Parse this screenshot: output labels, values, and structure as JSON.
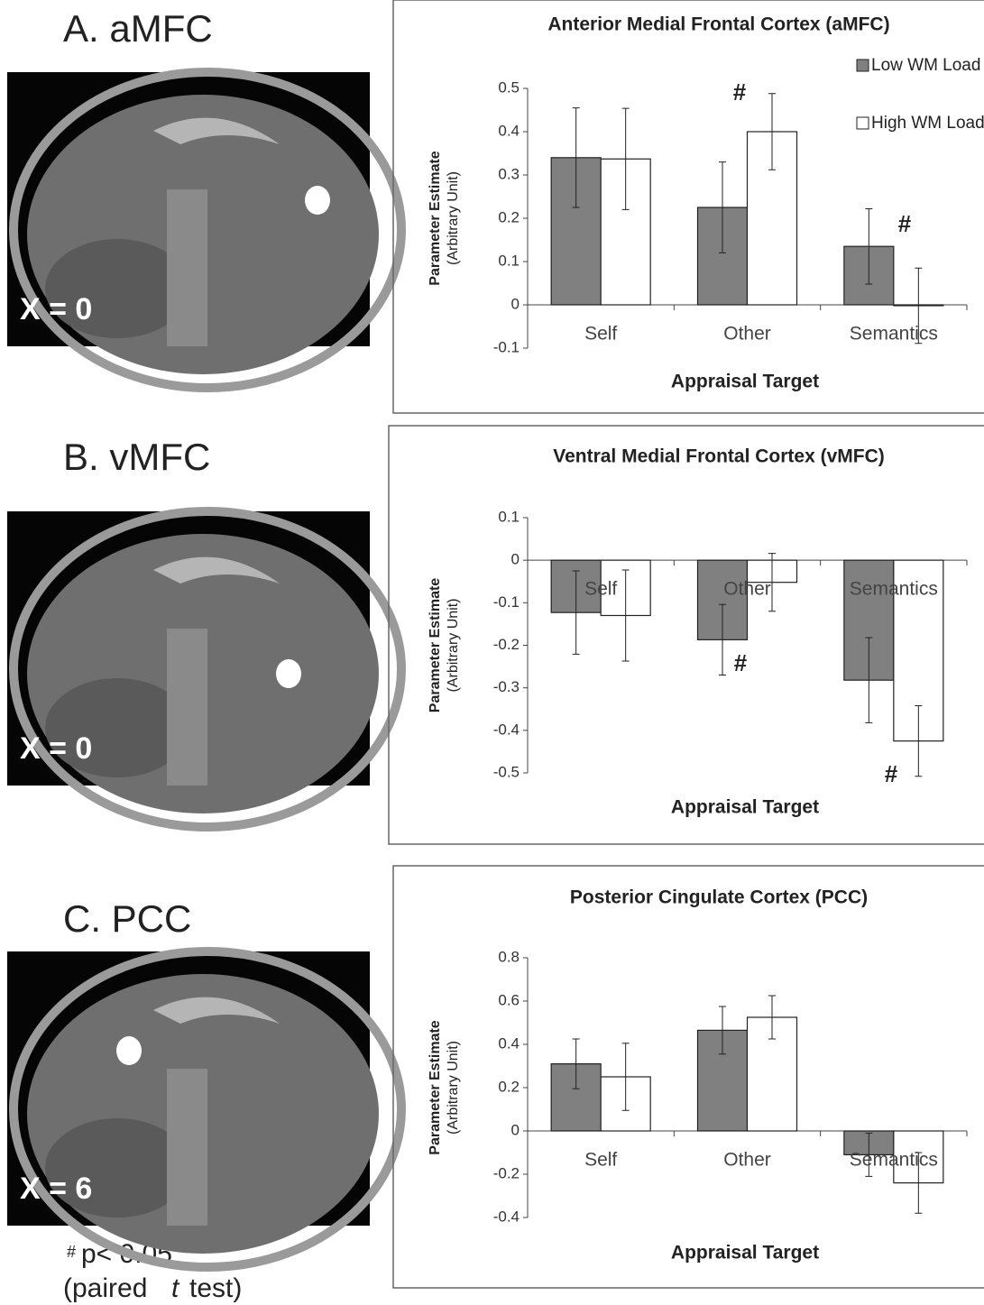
{
  "chart_data": [
    {
      "type": "bar",
      "panel_label": "A. aMFC",
      "image_label": "X = 0",
      "title": "Anterior Medial Frontal Cortex (aMFC)",
      "xlabel": "Appraisal Target",
      "ylabel": [
        "Parameter Estimate",
        "(Arbitrary Unit)"
      ],
      "categories": [
        "Self",
        "Other",
        "Semantics"
      ],
      "series": [
        {
          "name": "Low WM Load",
          "color": "#808080",
          "values": [
            0.34,
            0.225,
            0.135
          ],
          "errors": [
            0.115,
            0.105,
            0.087
          ]
        },
        {
          "name": "High WM Load",
          "color": "#ffffff",
          "values": [
            0.337,
            0.4,
            -0.002
          ],
          "errors": [
            0.117,
            0.088,
            0.087
          ]
        }
      ],
      "annotations": [
        "#",
        "#"
      ],
      "ylim": [
        -0.1,
        0.5
      ],
      "yticks": [
        -0.1,
        0,
        0.1,
        0.2,
        0.3,
        0.4,
        0.5
      ]
    },
    {
      "type": "bar",
      "panel_label": "B. vMFC",
      "image_label": "X = 0",
      "title": "Ventral Medial Frontal Cortex (vMFC)",
      "xlabel": "Appraisal Target",
      "ylabel": [
        "Parameter Estimate",
        "(Arbitrary Unit)"
      ],
      "categories": [
        "Self",
        "Other",
        "Semantics"
      ],
      "series": [
        {
          "color": "#808080",
          "values": [
            -0.123,
            -0.187,
            -0.282
          ],
          "errors": [
            0.098,
            0.083,
            0.1
          ]
        },
        {
          "color": "#ffffff",
          "values": [
            -0.13,
            -0.052,
            -0.425
          ],
          "errors": [
            0.107,
            0.068,
            0.083
          ]
        }
      ],
      "annotations": [
        "#",
        "#"
      ],
      "ylim": [
        -0.5,
        0.1
      ],
      "yticks": [
        -0.5,
        -0.4,
        -0.3,
        -0.2,
        -0.1,
        0,
        0.1
      ]
    },
    {
      "type": "bar",
      "panel_label": "C. PCC",
      "image_label": "X = 6",
      "title": "Posterior Cingulate Cortex (PCC)",
      "xlabel": "Appraisal Target",
      "ylabel": [
        "Parameter Estimate",
        "(Arbitrary Unit)"
      ],
      "categories": [
        "Self",
        "Other",
        "Semantics"
      ],
      "series": [
        {
          "color": "#808080",
          "values": [
            0.31,
            0.465,
            -0.11
          ],
          "errors": [
            0.115,
            0.11,
            0.1
          ]
        },
        {
          "color": "#ffffff",
          "values": [
            0.25,
            0.525,
            -0.24
          ],
          "errors": [
            0.155,
            0.1,
            0.14
          ]
        }
      ],
      "ylim": [
        -0.4,
        0.8
      ],
      "yticks": [
        -0.4,
        -0.2,
        0,
        0.2,
        0.4,
        0.6,
        0.8
      ]
    }
  ],
  "footnote": [
    "#",
    "p< 0.05",
    "(paired",
    "t",
    "test)"
  ]
}
